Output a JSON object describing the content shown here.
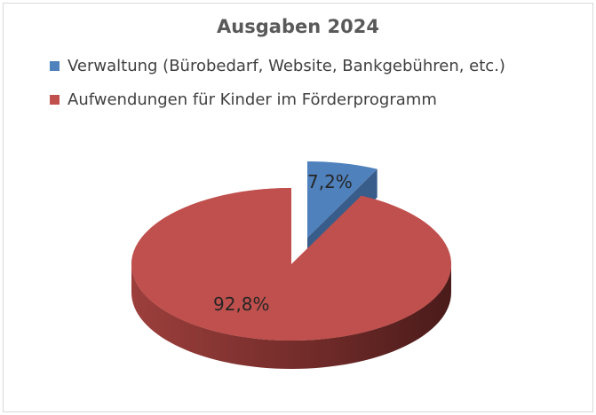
{
  "chart_data": {
    "type": "pie",
    "title": "Ausgaben 2024",
    "style": "3d-exploded",
    "legend_position": "top",
    "categories": [
      "Verwaltung (Bürobedarf, Website, Bankgebühren, etc.)",
      "Aufwendungen für Kinder im Förderprogramm"
    ],
    "values": [
      7.2,
      92.8
    ],
    "labels": [
      "7,2%",
      "92,8%"
    ],
    "colors": [
      "#4f81bd",
      "#c0504d"
    ]
  }
}
